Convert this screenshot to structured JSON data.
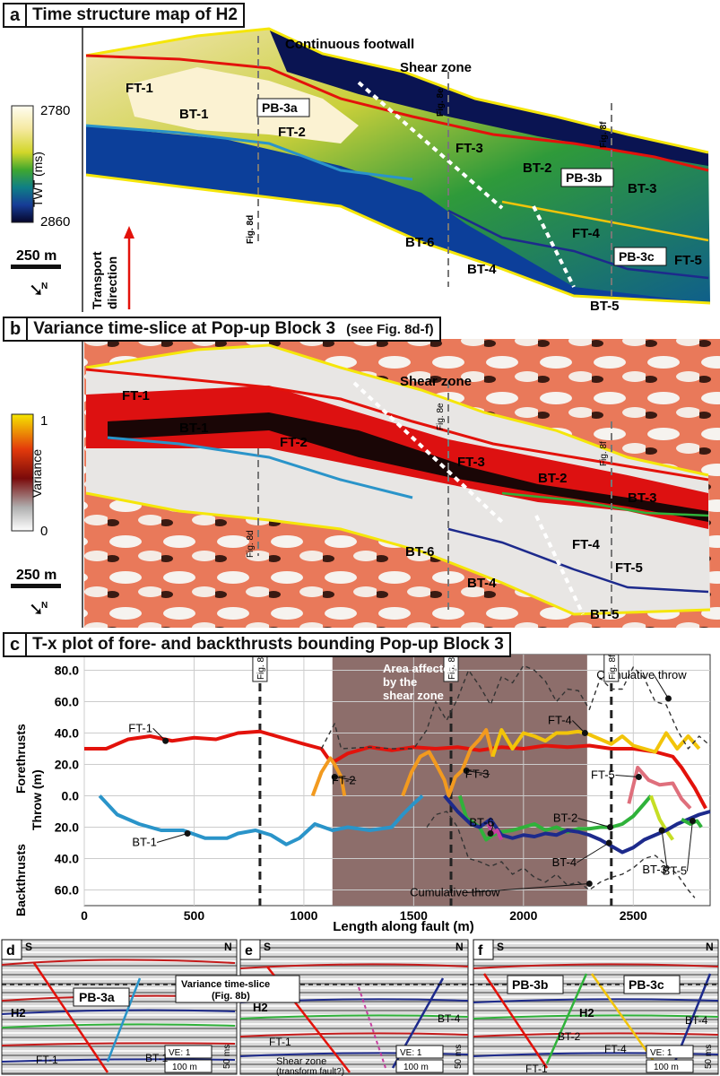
{
  "panel_a": {
    "letter": "a",
    "title": "Time structure map of H2",
    "legend_label": "TWT (ms)",
    "legend_top": "2780",
    "legend_bottom": "2860",
    "scale": "250 m",
    "north": "N",
    "transport": [
      "Transport",
      "direction"
    ],
    "labels": {
      "continuous_footwall": "Continuous footwall",
      "shear_zone": "Shear zone",
      "ft1": "FT-1",
      "bt1": "BT-1",
      "pb3a": "PB-3a",
      "ft2": "FT-2",
      "ft3": "FT-3",
      "bt2": "BT-2",
      "pb3b": "PB-3b",
      "bt3": "BT-3",
      "ft4": "FT-4",
      "bt6": "BT-6",
      "bt4": "BT-4",
      "pb3c": "PB-3c",
      "ft5": "FT-5",
      "bt5": "BT-5",
      "fig8d": "Fig. 8d",
      "fig8e": "Fig. 8e",
      "fig8f": "Fig. 8f"
    }
  },
  "panel_b": {
    "letter": "b",
    "title": "Variance time-slice at Pop-up Block 3",
    "subtitle": "(see Fig. 8d-f)",
    "legend_label": "Variance",
    "legend_top": "1",
    "legend_bottom": "0",
    "scale": "250 m",
    "north": "N",
    "labels": {
      "shear_zone": "Shear zone",
      "ft1": "FT-1",
      "bt1": "BT-1",
      "ft2": "FT-2",
      "ft3": "FT-3",
      "bt2": "BT-2",
      "bt3": "BT-3",
      "ft4": "FT-4",
      "ft5": "FT-5",
      "bt6": "BT-6",
      "bt4": "BT-4",
      "bt5": "BT-5",
      "fig8d": "Fig. 8d",
      "fig8e": "Fig. 8e",
      "fig8f": "Fig. 8f"
    }
  },
  "panel_c": {
    "letter": "c",
    "title": "T-x plot of fore- and backthrusts bounding Pop-up Block 3",
    "shaded_label": [
      "Area affected",
      "by the",
      "shear zone"
    ],
    "cum_top": "Cumulative throw",
    "cum_bottom": "Cumulative throw",
    "labels": {
      "ft1": "FT-1",
      "ft2": "FT-2",
      "ft3": "FT-3",
      "ft4": "FT-4",
      "ft5": "FT-5",
      "bt1": "BT-1",
      "bt2": "BT-2",
      "bt3": "BT-3",
      "bt4": "BT-4",
      "bt5": "BT-5",
      "bt6": "BT-6",
      "fig8d": "Fig. 8d",
      "fig8e": "Fig. 8e",
      "fig8f": "Fig. 8f"
    },
    "ylabel_fore": "Forethrusts",
    "ylabel_back": "Backthrusts",
    "ylabel_throw": "Throw (m)"
  },
  "chart_data": {
    "type": "line",
    "xlabel": "Length along fault (m)",
    "ylabel": "Throw (m)",
    "xlim": [
      0,
      2850
    ],
    "ylim": [
      -70,
      90
    ],
    "x_ticks": [
      "0",
      "500",
      "1000",
      "1500",
      "2000",
      "2500"
    ],
    "y_ticks": [
      {
        "v": 80,
        "t": "80.0"
      },
      {
        "v": 60,
        "t": "60.0"
      },
      {
        "v": 40,
        "t": "40.0"
      },
      {
        "v": 20,
        "t": "20.0"
      },
      {
        "v": 0,
        "t": "0.0"
      },
      {
        "v": -20,
        "t": "20.0"
      },
      {
        "v": -40,
        "t": "40.0"
      },
      {
        "v": -60,
        "t": "60.0"
      }
    ],
    "shaded_region": [
      1130,
      2290
    ],
    "reference_lines": [
      {
        "x": 800,
        "label": "Fig. 8d"
      },
      {
        "x": 1670,
        "label": "Fig. 8e"
      },
      {
        "x": 2400,
        "label": "Fig. 8f"
      }
    ],
    "series": [
      {
        "name": "FT-1",
        "color": "#e3120b",
        "dash": false,
        "points": [
          [
            0,
            30
          ],
          [
            100,
            30
          ],
          [
            200,
            36
          ],
          [
            300,
            38
          ],
          [
            400,
            35
          ],
          [
            500,
            37
          ],
          [
            600,
            36
          ],
          [
            700,
            40
          ],
          [
            800,
            41
          ],
          [
            900,
            37
          ],
          [
            1000,
            33
          ],
          [
            1080,
            30
          ],
          [
            1110,
            24
          ],
          [
            1140,
            22
          ],
          [
            1200,
            27
          ],
          [
            1300,
            31
          ],
          [
            1400,
            29
          ],
          [
            1500,
            31
          ],
          [
            1600,
            30
          ],
          [
            1700,
            31
          ],
          [
            1800,
            29
          ],
          [
            1900,
            31
          ],
          [
            2000,
            30
          ],
          [
            2100,
            32
          ],
          [
            2200,
            31
          ],
          [
            2300,
            32
          ],
          [
            2400,
            30
          ],
          [
            2500,
            30
          ],
          [
            2600,
            28
          ],
          [
            2680,
            25
          ],
          [
            2720,
            18
          ],
          [
            2780,
            5
          ],
          [
            2830,
            -8
          ]
        ]
      },
      {
        "name": "FT-2",
        "color": "#f29a1f",
        "dash": false,
        "points": [
          [
            1040,
            0
          ],
          [
            1080,
            15
          ],
          [
            1120,
            24
          ],
          [
            1140,
            20
          ],
          [
            1170,
            12
          ],
          [
            1185,
            0
          ]
        ]
      },
      {
        "name": "FT-3",
        "color": "#f29a1f",
        "dash": false,
        "points": [
          [
            1450,
            0
          ],
          [
            1490,
            15
          ],
          [
            1530,
            25
          ],
          [
            1570,
            28
          ],
          [
            1610,
            18
          ],
          [
            1640,
            10
          ],
          [
            1660,
            0
          ],
          [
            1690,
            12
          ],
          [
            1720,
            16
          ],
          [
            1760,
            30
          ],
          [
            1800,
            36
          ],
          [
            1830,
            42
          ],
          [
            1860,
            25
          ]
        ]
      },
      {
        "name": "FT-4",
        "color": "#f2c40a",
        "dash": false,
        "points": [
          [
            1860,
            25
          ],
          [
            1900,
            42
          ],
          [
            1950,
            30
          ],
          [
            2000,
            40
          ],
          [
            2050,
            38
          ],
          [
            2100,
            35
          ],
          [
            2150,
            40
          ],
          [
            2200,
            40
          ],
          [
            2250,
            41
          ],
          [
            2300,
            39
          ],
          [
            2350,
            36
          ],
          [
            2400,
            33
          ],
          [
            2450,
            38
          ],
          [
            2500,
            32
          ],
          [
            2550,
            30
          ],
          [
            2600,
            28
          ],
          [
            2650,
            40
          ],
          [
            2700,
            30
          ],
          [
            2750,
            38
          ],
          [
            2800,
            30
          ]
        ]
      },
      {
        "name": "FT-5",
        "color": "#df6f7c",
        "dash": false,
        "points": [
          [
            2480,
            -5
          ],
          [
            2520,
            18
          ],
          [
            2570,
            10
          ],
          [
            2620,
            7
          ],
          [
            2680,
            8
          ],
          [
            2720,
            -2
          ],
          [
            2760,
            -8
          ]
        ]
      },
      {
        "name": "BT-1",
        "color": "#2a94c9",
        "dash": false,
        "points": [
          [
            70,
            0
          ],
          [
            150,
            -12
          ],
          [
            250,
            -18
          ],
          [
            350,
            -22
          ],
          [
            450,
            -22
          ],
          [
            550,
            -27
          ],
          [
            650,
            -27
          ],
          [
            700,
            -24
          ],
          [
            780,
            -22
          ],
          [
            850,
            -25
          ],
          [
            920,
            -31
          ],
          [
            980,
            -27
          ],
          [
            1050,
            -18
          ],
          [
            1130,
            -22
          ],
          [
            1200,
            -20
          ],
          [
            1300,
            -22
          ],
          [
            1400,
            -20
          ],
          [
            1450,
            -12
          ],
          [
            1500,
            -5
          ],
          [
            1540,
            0
          ]
        ]
      },
      {
        "name": "BT-2",
        "color": "#2fb23a",
        "dash": false,
        "points": [
          [
            1710,
            0
          ],
          [
            1740,
            -14
          ],
          [
            1780,
            -18
          ],
          [
            1800,
            -20
          ],
          [
            1830,
            -28
          ],
          [
            1860,
            -25
          ],
          [
            1900,
            -23
          ],
          [
            1950,
            -22
          ],
          [
            2000,
            -20
          ],
          [
            2050,
            -18
          ],
          [
            2100,
            -22
          ],
          [
            2150,
            -20
          ],
          [
            2200,
            -23
          ],
          [
            2250,
            -21
          ],
          [
            2300,
            -21
          ],
          [
            2350,
            -20
          ],
          [
            2400,
            -20
          ],
          [
            2450,
            -18
          ],
          [
            2500,
            -13
          ],
          [
            2550,
            -5
          ],
          [
            2580,
            0
          ]
        ]
      },
      {
        "name": "BT-3",
        "color": "#c6de25",
        "dash": false,
        "points": [
          [
            2580,
            0
          ],
          [
            2620,
            -15
          ],
          [
            2650,
            -22
          ],
          [
            2680,
            -28
          ]
        ]
      },
      {
        "name": "BT-4",
        "color": "#1d2a8c",
        "dash": false,
        "points": [
          [
            1640,
            0
          ],
          [
            1700,
            -10
          ],
          [
            1760,
            -18
          ],
          [
            1800,
            -20
          ],
          [
            1850,
            -15
          ],
          [
            1900,
            -25
          ],
          [
            1950,
            -27
          ],
          [
            2000,
            -25
          ],
          [
            2050,
            -26
          ],
          [
            2100,
            -24
          ],
          [
            2150,
            -25
          ],
          [
            2200,
            -22
          ],
          [
            2250,
            -23
          ],
          [
            2300,
            -25
          ],
          [
            2350,
            -28
          ],
          [
            2400,
            -32
          ],
          [
            2450,
            -36
          ],
          [
            2500,
            -33
          ],
          [
            2550,
            -28
          ],
          [
            2600,
            -25
          ],
          [
            2650,
            -22
          ],
          [
            2700,
            -18
          ],
          [
            2750,
            -15
          ],
          [
            2800,
            -12
          ],
          [
            2850,
            -10
          ]
        ]
      },
      {
        "name": "BT-5",
        "color": "#2fb23a",
        "dash": false,
        "points": [
          [
            2720,
            -15
          ],
          [
            2760,
            -18
          ],
          [
            2790,
            -16
          ],
          [
            2810,
            -20
          ]
        ]
      },
      {
        "name": "BT-6",
        "color": "#c63f9f",
        "dash": false,
        "points": [
          [
            1840,
            -18
          ],
          [
            1860,
            -24
          ],
          [
            1880,
            -22
          ],
          [
            1900,
            -28
          ]
        ]
      },
      {
        "name": "Cumulative throw",
        "color": "#333333",
        "dash": true,
        "points": [
          [
            1080,
            30
          ],
          [
            1140,
            46
          ],
          [
            1170,
            30
          ],
          [
            1300,
            31
          ],
          [
            1400,
            30
          ],
          [
            1500,
            30
          ],
          [
            1560,
            42
          ],
          [
            1600,
            60
          ],
          [
            1650,
            48
          ],
          [
            1700,
            62
          ],
          [
            1750,
            80
          ],
          [
            1800,
            70
          ],
          [
            1850,
            58
          ],
          [
            1900,
            76
          ],
          [
            1950,
            72
          ],
          [
            2000,
            83
          ],
          [
            2050,
            80
          ],
          [
            2100,
            73
          ],
          [
            2150,
            60
          ],
          [
            2200,
            68
          ],
          [
            2250,
            67
          ],
          [
            2300,
            55
          ],
          [
            2350,
            75
          ],
          [
            2400,
            68
          ],
          [
            2450,
            68
          ],
          [
            2500,
            82
          ],
          [
            2550,
            75
          ],
          [
            2600,
            60
          ],
          [
            2650,
            58
          ],
          [
            2700,
            42
          ],
          [
            2750,
            30
          ],
          [
            2800,
            38
          ],
          [
            2850,
            32
          ]
        ]
      },
      {
        "name": "Cumulative throw",
        "color": "#333333",
        "dash": true,
        "points": [
          [
            1560,
            -20
          ],
          [
            1600,
            -12
          ],
          [
            1650,
            -10
          ],
          [
            1700,
            -20
          ],
          [
            1750,
            -40
          ],
          [
            1800,
            -42
          ],
          [
            1850,
            -45
          ],
          [
            1900,
            -42
          ],
          [
            1950,
            -50
          ],
          [
            2000,
            -46
          ],
          [
            2050,
            -52
          ],
          [
            2100,
            -55
          ],
          [
            2150,
            -50
          ],
          [
            2200,
            -57
          ],
          [
            2250,
            -55
          ],
          [
            2300,
            -60
          ],
          [
            2350,
            -55
          ],
          [
            2400,
            -52
          ],
          [
            2450,
            -50
          ],
          [
            2500,
            -46
          ],
          [
            2550,
            -40
          ],
          [
            2600,
            -38
          ],
          [
            2650,
            -44
          ],
          [
            2700,
            -50
          ],
          [
            2750,
            -60
          ],
          [
            2780,
            -65
          ]
        ]
      }
    ],
    "markers": [
      {
        "x": 370,
        "y": 35,
        "label": "FT-1"
      },
      {
        "x": 1140,
        "y": 12,
        "label": "FT-2"
      },
      {
        "x": 1740,
        "y": 16,
        "label": "FT-3"
      },
      {
        "x": 2280,
        "y": 40,
        "label": "FT-4"
      },
      {
        "x": 2525,
        "y": 12,
        "label": "FT-5"
      },
      {
        "x": 470,
        "y": -24,
        "label": "BT-1"
      },
      {
        "x": 1850,
        "y": -24,
        "label": "BT-6"
      },
      {
        "x": 2395,
        "y": -20,
        "label": "BT-2"
      },
      {
        "x": 2390,
        "y": -30,
        "label": "BT-4"
      },
      {
        "x": 2630,
        "y": -22,
        "label": "BT-3"
      },
      {
        "x": 2770,
        "y": -16,
        "label": "BT-5"
      },
      {
        "x": 2660,
        "y": 62,
        "label": "Cumulative throw"
      },
      {
        "x": 2300,
        "y": -56,
        "label": "Cumulative throw"
      }
    ]
  },
  "sections": [
    {
      "letter": "d",
      "s": "S",
      "n": "N",
      "labels": [
        "H2",
        "PB-3a",
        "FT-1",
        "BT-1"
      ],
      "ve": "VE: 1",
      "ms": "50 ms",
      "m": "100 m",
      "note": [
        "Variance time-slice",
        "(Fig. 8b)"
      ]
    },
    {
      "letter": "e",
      "s": "S",
      "n": "N",
      "labels": [
        "H2",
        "FT-1",
        "BT-4",
        "Shear zone",
        "(transform fault?)"
      ],
      "ve": "VE: 1",
      "ms": "50 ms",
      "m": "100 m"
    },
    {
      "letter": "f",
      "s": "S",
      "n": "N",
      "labels": [
        "PB-3b",
        "PB-3c",
        "H2",
        "BT-2",
        "BT-4",
        "FT-4",
        "FT-1"
      ],
      "ve": "VE: 1",
      "ms": "50 ms",
      "m": "100 m"
    }
  ]
}
